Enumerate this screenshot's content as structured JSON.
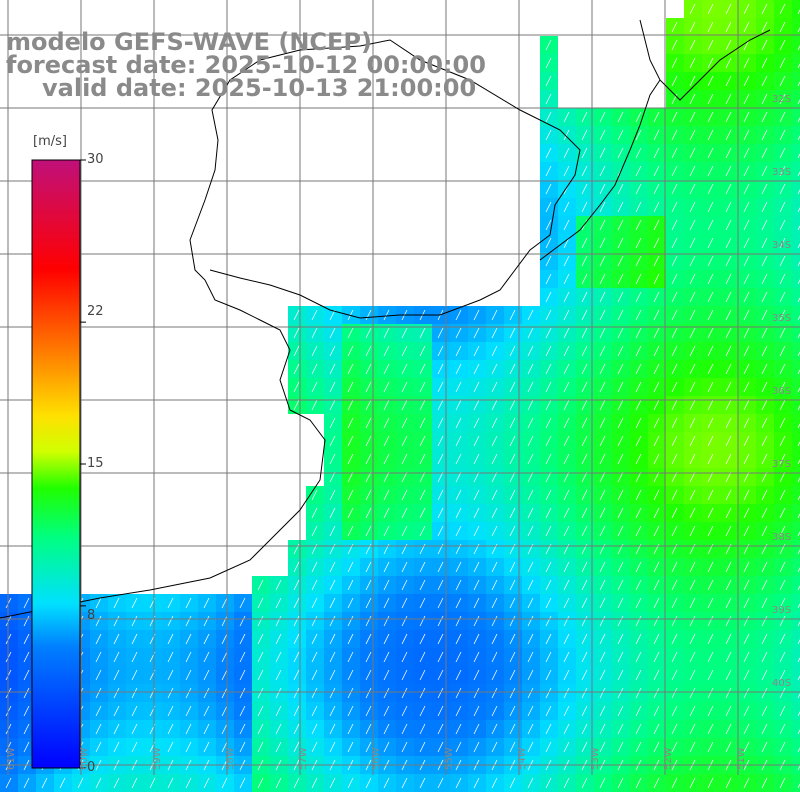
{
  "title": {
    "line1": "modelo GEFS-WAVE (NCEP)",
    "line2": "forecast date: 2025-10-12 00:00:00",
    "line3": "valid date: 2025-10-13 21:00:00"
  },
  "colorbar": {
    "unit": "[m/s]",
    "min": 0,
    "max": 30,
    "ticks": [
      "30",
      "22",
      "15",
      "8",
      "0"
    ],
    "tick_values": [
      30,
      22,
      15,
      8,
      0
    ]
  },
  "lat_labels": [
    "32S",
    "33S",
    "34S",
    "35S",
    "36S",
    "37S",
    "38S",
    "39S",
    "40S"
  ],
  "lon_labels": [
    "61W",
    "60W",
    "59W",
    "58W",
    "57W",
    "56W",
    "55W",
    "54W",
    "53W",
    "52W",
    "51W"
  ],
  "colors": {
    "land": "#ffffff",
    "coastline": "#000000",
    "grid": "#777777",
    "title": "#8a8a8a",
    "arrows": "#ffffff"
  },
  "field": {
    "quantity": "wind speed",
    "arrow_direction": "toward northeast / north"
  }
}
